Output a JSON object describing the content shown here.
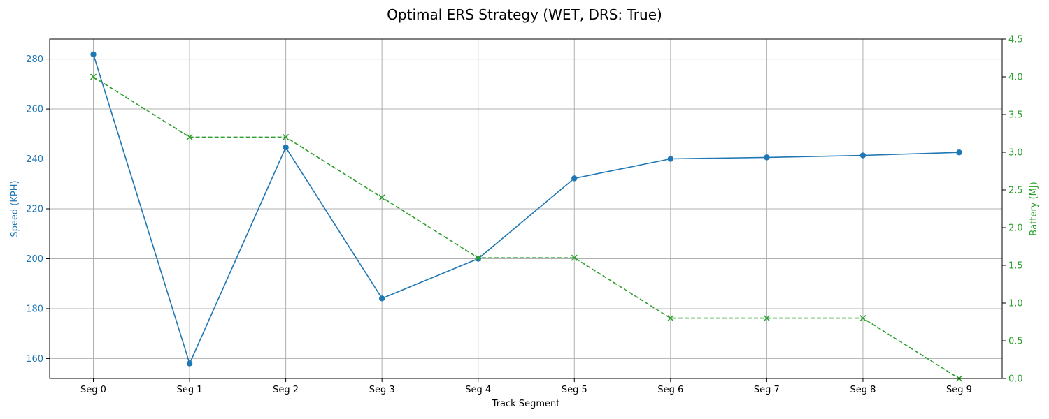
{
  "chart_data": {
    "type": "line",
    "title": "Optimal ERS Strategy (WET, DRS: True)",
    "xlabel": "Track Segment",
    "ylabel_left": "Speed (KPH)",
    "ylabel_right": "Battery (MJ)",
    "categories": [
      "Seg 0",
      "Seg 1",
      "Seg 2",
      "Seg 3",
      "Seg 4",
      "Seg 5",
      "Seg 6",
      "Seg 7",
      "Seg 8",
      "Seg 9"
    ],
    "ylim_left": [
      152,
      288
    ],
    "yticks_left": [
      "160",
      "180",
      "200",
      "220",
      "240",
      "260",
      "280"
    ],
    "ylim_right": [
      0,
      4.5
    ],
    "yticks_right": [
      "0.0",
      "0.5",
      "1.0",
      "1.5",
      "2.0",
      "2.5",
      "3.0",
      "3.5",
      "4.0",
      "4.5"
    ],
    "grid": true,
    "series": [
      {
        "axis": "left",
        "color": "#1f77b4",
        "marker": "circle",
        "linestyle": "solid",
        "values": [
          281.9,
          158.0,
          244.6,
          184.1,
          200.0,
          232.2,
          240.0,
          240.6,
          241.4,
          242.6
        ]
      },
      {
        "axis": "right",
        "color": "#2ca02c",
        "marker": "x",
        "linestyle": "dashed",
        "values": [
          4.0,
          3.2,
          3.2,
          2.4,
          1.6,
          1.6,
          0.8,
          0.8,
          0.8,
          0.0
        ]
      }
    ]
  }
}
